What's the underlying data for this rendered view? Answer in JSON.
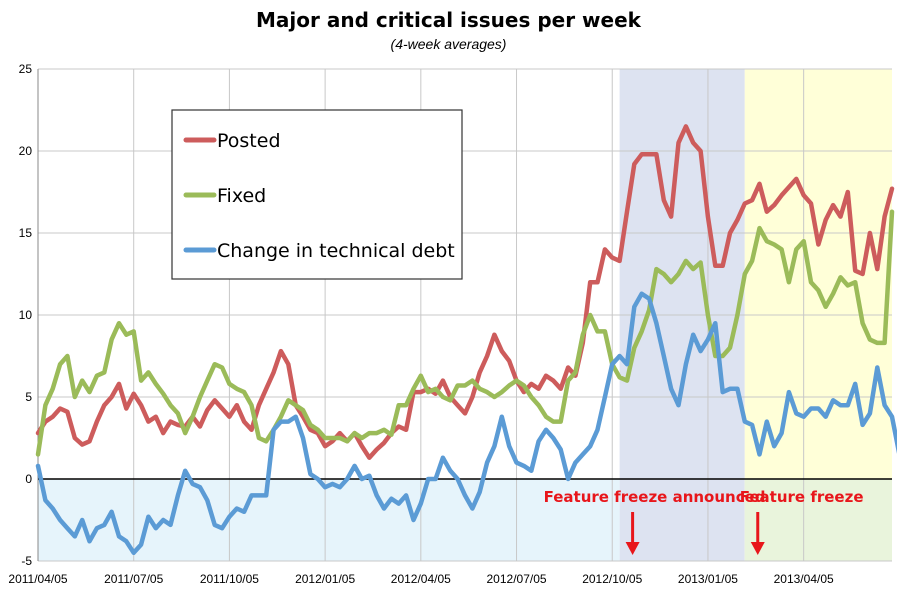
{
  "chart_data": {
    "type": "line",
    "title": "Major and critical issues per week",
    "subtitle": "(4-week averages)",
    "xlabel": "",
    "ylabel": "",
    "ylim": [
      -5,
      25
    ],
    "y_ticks": [
      "-5",
      "0",
      "5",
      "10",
      "15",
      "20",
      "25"
    ],
    "x_tick_labels": [
      "2011/04/05",
      "2011/07/05",
      "2011/10/05",
      "2012/01/05",
      "2012/04/05",
      "2012/07/05",
      "2012/10/05",
      "2013/01/05",
      "2013/04/05"
    ],
    "grid": true,
    "legend_position": "top-left",
    "series": [
      {
        "name": "Posted",
        "color": "#cd5c5c",
        "values": [
          2.8,
          3.5,
          3.8,
          4.3,
          4.1,
          2.5,
          2.1,
          2.3,
          3.5,
          4.5,
          5.0,
          5.8,
          4.3,
          5.2,
          4.5,
          3.5,
          3.8,
          2.8,
          3.5,
          3.3,
          3.2,
          3.8,
          3.2,
          4.2,
          4.8,
          4.3,
          3.8,
          4.5,
          3.5,
          3.0,
          4.5,
          5.5,
          6.5,
          7.8,
          7.0,
          4.5,
          3.8,
          3.0,
          2.8,
          2.0,
          2.3,
          2.8,
          2.3,
          2.8,
          2.0,
          1.3,
          1.8,
          2.2,
          2.8,
          3.2,
          3.0,
          5.3,
          5.3,
          5.5,
          5.2,
          6.0,
          5.0,
          4.5,
          4.0,
          5.0,
          6.5,
          7.5,
          8.8,
          7.8,
          7.2,
          6.0,
          5.3,
          5.8,
          5.5,
          6.3,
          6.0,
          5.5,
          6.8,
          6.3,
          8.3,
          12.0,
          12.0,
          14.0,
          13.5,
          13.3,
          16.3,
          19.2,
          19.8,
          19.8,
          19.8,
          17.0,
          16.0,
          20.5,
          21.5,
          20.5,
          20.0,
          16.0,
          13.0,
          13.0,
          15.0,
          15.8,
          16.8,
          17.0,
          18.0,
          16.3,
          16.7,
          17.3,
          17.8,
          18.3,
          17.3,
          16.8,
          14.3,
          15.8,
          16.7,
          16.0,
          17.5,
          12.7,
          12.5,
          15.0,
          12.8,
          16.0,
          17.7
        ]
      },
      {
        "name": "Fixed",
        "color": "#9bbb59",
        "values": [
          1.5,
          4.5,
          5.5,
          7.0,
          7.5,
          5.0,
          6.0,
          5.3,
          6.3,
          6.5,
          8.5,
          9.5,
          8.8,
          9.0,
          6.0,
          6.5,
          5.8,
          5.2,
          4.5,
          4.0,
          2.8,
          3.8,
          5.0,
          6.0,
          7.0,
          6.8,
          5.8,
          5.5,
          5.3,
          4.5,
          2.5,
          2.3,
          3.0,
          3.8,
          4.8,
          4.5,
          4.2,
          3.3,
          3.0,
          2.5,
          2.5,
          2.5,
          2.3,
          2.8,
          2.5,
          2.8,
          2.8,
          3.0,
          2.7,
          4.5,
          4.5,
          5.5,
          6.3,
          5.3,
          5.5,
          5.0,
          4.8,
          5.7,
          5.7,
          6.0,
          5.5,
          5.3,
          5.0,
          5.3,
          5.7,
          6.0,
          5.7,
          5.0,
          4.5,
          3.8,
          3.5,
          3.5,
          6.0,
          6.5,
          8.8,
          10.0,
          9.0,
          9.0,
          7.0,
          6.2,
          6.0,
          8.0,
          9.0,
          10.3,
          12.8,
          12.5,
          12.0,
          12.5,
          13.3,
          12.8,
          13.2,
          10.0,
          7.5,
          7.5,
          8.0,
          10.0,
          12.5,
          13.3,
          15.3,
          14.5,
          14.3,
          14.0,
          12.0,
          14.0,
          14.5,
          12.0,
          11.5,
          10.5,
          11.3,
          12.3,
          11.8,
          12.0,
          9.5,
          8.5,
          8.3,
          8.3,
          16.3
        ]
      },
      {
        "name": "Change in technical debt",
        "color": "#5b9bd5",
        "values": [
          0.8,
          -1.3,
          -1.8,
          -2.5,
          -3.0,
          -3.5,
          -2.5,
          -3.8,
          -3.0,
          -2.8,
          -2.0,
          -3.5,
          -3.8,
          -4.5,
          -4.0,
          -2.3,
          -3.0,
          -2.5,
          -2.8,
          -1.0,
          0.5,
          -0.3,
          -0.5,
          -1.3,
          -2.8,
          -3.0,
          -2.3,
          -1.8,
          -2.0,
          -1.0,
          -1.0,
          -1.0,
          3.0,
          3.5,
          3.5,
          3.8,
          2.5,
          0.3,
          0.0,
          -0.5,
          -0.3,
          -0.5,
          0.0,
          0.8,
          0.0,
          0.2,
          -1.0,
          -1.8,
          -1.2,
          -1.5,
          -1.0,
          -2.5,
          -1.5,
          0.0,
          0.0,
          1.3,
          0.5,
          0.0,
          -1.0,
          -1.8,
          -0.8,
          1.0,
          2.0,
          3.8,
          2.0,
          1.0,
          0.8,
          0.5,
          2.3,
          3.0,
          2.5,
          1.8,
          0.0,
          1.0,
          1.5,
          2.0,
          3.0,
          5.0,
          7.0,
          7.5,
          7.0,
          10.5,
          11.3,
          11.0,
          9.5,
          7.5,
          5.5,
          4.5,
          7.0,
          8.8,
          7.8,
          8.5,
          9.5,
          5.3,
          5.5,
          5.5,
          3.5,
          3.3,
          1.5,
          3.5,
          2.0,
          2.8,
          5.3,
          4.0,
          3.8,
          4.3,
          4.3,
          3.8,
          4.8,
          4.5,
          4.5,
          5.8,
          3.3,
          4.0,
          6.8,
          4.5,
          3.8,
          1.5
        ]
      }
    ],
    "shaded_regions": [
      {
        "from_week": 79,
        "to_week": 96,
        "color": "#dde3f1"
      },
      {
        "from_week": 96,
        "to_week": 116,
        "color": "#ffffd8"
      },
      {
        "from_week": 0,
        "to_week": 79,
        "below_zero": true,
        "color": "#e6f4fb"
      },
      {
        "from_week": 96,
        "to_week": 116,
        "below_zero": true,
        "color": "#e9f4dc"
      }
    ],
    "annotations": [
      {
        "text": "Feature freeze announced",
        "week": 79
      },
      {
        "text": "Feature freeze",
        "week": 96
      }
    ]
  }
}
